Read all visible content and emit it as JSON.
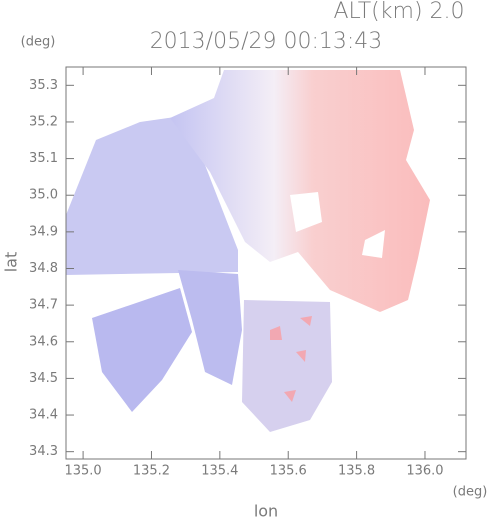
{
  "chart_data": {
    "type": "image",
    "title": "2013/05/29 00:13:43",
    "subtitle": "ALT(km) 2.0",
    "y_unit": "(deg)",
    "x_unit": "(deg)",
    "x_label": "lon",
    "y_label": "lat",
    "xlim": [
      134.95,
      136.12
    ],
    "ylim": [
      34.28,
      35.35
    ],
    "xticks": [
      {
        "value": 135,
        "label": "135.0"
      },
      135.2,
      135.4,
      135.6,
      135.8,
      {
        "value": 136,
        "label": "136.0"
      }
    ],
    "yticks": [
      34.3,
      34.4,
      34.5,
      34.6,
      34.7,
      34.8,
      34.9,
      {
        "value": 35,
        "label": "35.0"
      },
      35.1,
      35.2,
      35.3
    ]
  }
}
